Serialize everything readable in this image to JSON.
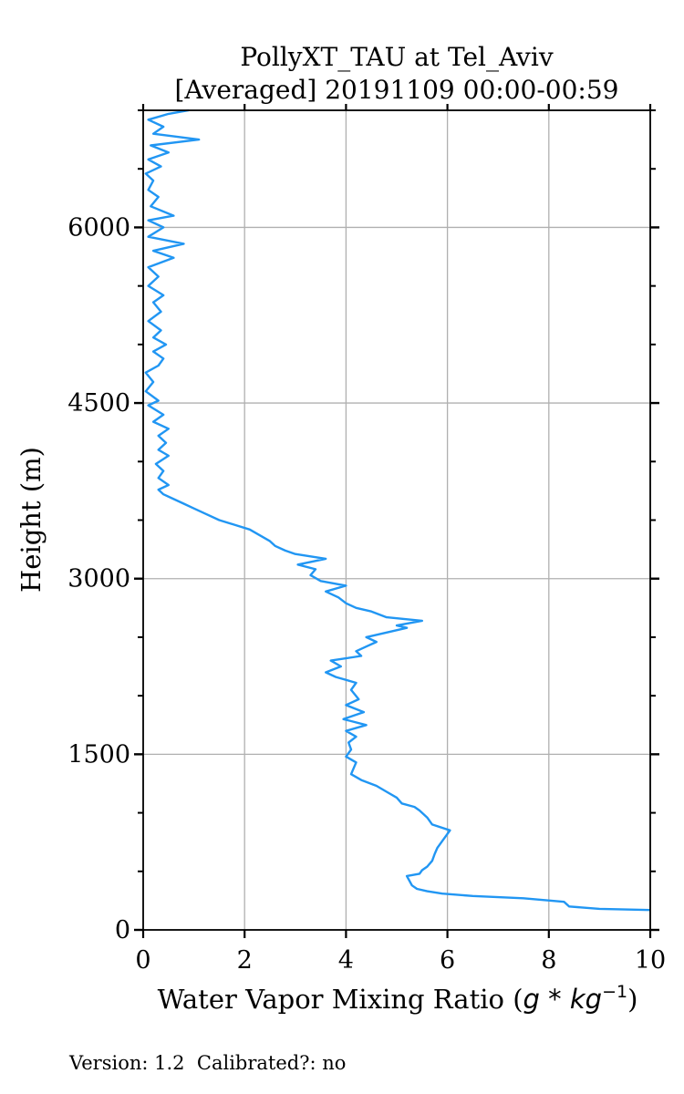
{
  "chart_data": {
    "type": "line",
    "title": "PollyXT_TAU at Tel_Aviv",
    "subtitle": "[Averaged] 20191109 00:00-00:59",
    "xlabel_text": "Water Vapor Mixing Ratio (",
    "xlabel_math": "g * kg",
    "xlabel_exp": "−1",
    "xlabel_close": ")",
    "ylabel": "Height (m)",
    "xlim": [
      0,
      10
    ],
    "ylim": [
      0,
      7000
    ],
    "xticks": [
      0,
      2,
      4,
      6,
      8,
      10
    ],
    "yticks": [
      0,
      1500,
      3000,
      4500,
      6000
    ],
    "yminor_step": 500,
    "grid": true,
    "line_color": "#2196f3",
    "series": [
      {
        "points": [
          [
            10.0,
            170
          ],
          [
            9.0,
            180
          ],
          [
            8.4,
            200
          ],
          [
            8.3,
            240
          ],
          [
            7.5,
            270
          ],
          [
            6.5,
            290
          ],
          [
            5.9,
            310
          ],
          [
            5.6,
            330
          ],
          [
            5.4,
            350
          ],
          [
            5.3,
            380
          ],
          [
            5.25,
            420
          ],
          [
            5.2,
            460
          ],
          [
            5.45,
            480
          ],
          [
            5.5,
            510
          ],
          [
            5.6,
            540
          ],
          [
            5.7,
            590
          ],
          [
            5.75,
            650
          ],
          [
            5.8,
            700
          ],
          [
            5.9,
            760
          ],
          [
            6.05,
            850
          ],
          [
            5.7,
            900
          ],
          [
            5.6,
            960
          ],
          [
            5.45,
            1020
          ],
          [
            5.35,
            1050
          ],
          [
            5.1,
            1080
          ],
          [
            5.0,
            1130
          ],
          [
            4.8,
            1180
          ],
          [
            4.6,
            1230
          ],
          [
            4.3,
            1280
          ],
          [
            4.1,
            1330
          ],
          [
            4.15,
            1380
          ],
          [
            4.2,
            1430
          ],
          [
            4.0,
            1480
          ],
          [
            4.1,
            1540
          ],
          [
            4.05,
            1600
          ],
          [
            4.2,
            1650
          ],
          [
            4.0,
            1700
          ],
          [
            4.4,
            1750
          ],
          [
            3.95,
            1800
          ],
          [
            4.35,
            1860
          ],
          [
            4.0,
            1920
          ],
          [
            4.25,
            1970
          ],
          [
            4.1,
            2050
          ],
          [
            4.2,
            2110
          ],
          [
            3.8,
            2160
          ],
          [
            3.6,
            2200
          ],
          [
            3.9,
            2250
          ],
          [
            3.7,
            2300
          ],
          [
            4.3,
            2340
          ],
          [
            4.2,
            2380
          ],
          [
            4.4,
            2420
          ],
          [
            4.6,
            2460
          ],
          [
            4.4,
            2500
          ],
          [
            4.8,
            2540
          ],
          [
            5.2,
            2580
          ],
          [
            5.0,
            2600
          ],
          [
            5.5,
            2640
          ],
          [
            4.8,
            2670
          ],
          [
            4.5,
            2720
          ],
          [
            4.2,
            2750
          ],
          [
            4.0,
            2790
          ],
          [
            3.85,
            2840
          ],
          [
            3.6,
            2890
          ],
          [
            4.0,
            2940
          ],
          [
            3.5,
            2980
          ],
          [
            3.3,
            3030
          ],
          [
            3.4,
            3080
          ],
          [
            3.05,
            3120
          ],
          [
            3.6,
            3170
          ],
          [
            3.0,
            3210
          ],
          [
            2.8,
            3240
          ],
          [
            2.6,
            3280
          ],
          [
            2.5,
            3320
          ],
          [
            2.3,
            3370
          ],
          [
            2.1,
            3420
          ],
          [
            1.8,
            3460
          ],
          [
            1.5,
            3500
          ],
          [
            1.2,
            3560
          ],
          [
            1.0,
            3600
          ],
          [
            0.8,
            3640
          ],
          [
            0.6,
            3680
          ],
          [
            0.4,
            3720
          ],
          [
            0.3,
            3760
          ],
          [
            0.5,
            3800
          ],
          [
            0.3,
            3860
          ],
          [
            0.4,
            3920
          ],
          [
            0.25,
            3980
          ],
          [
            0.5,
            4050
          ],
          [
            0.3,
            4100
          ],
          [
            0.45,
            4160
          ],
          [
            0.3,
            4220
          ],
          [
            0.5,
            4280
          ],
          [
            0.2,
            4340
          ],
          [
            0.4,
            4400
          ],
          [
            0.1,
            4480
          ],
          [
            0.3,
            4520
          ],
          [
            0.05,
            4600
          ],
          [
            0.2,
            4680
          ],
          [
            0.05,
            4760
          ],
          [
            0.3,
            4820
          ],
          [
            0.4,
            4880
          ],
          [
            0.2,
            4940
          ],
          [
            0.45,
            5000
          ],
          [
            0.2,
            5060
          ],
          [
            0.35,
            5120
          ],
          [
            0.1,
            5200
          ],
          [
            0.35,
            5280
          ],
          [
            0.2,
            5360
          ],
          [
            0.4,
            5420
          ],
          [
            0.1,
            5500
          ],
          [
            0.3,
            5580
          ],
          [
            0.1,
            5660
          ],
          [
            0.6,
            5740
          ],
          [
            0.2,
            5800
          ],
          [
            0.8,
            5860
          ],
          [
            0.1,
            5920
          ],
          [
            0.4,
            6000
          ],
          [
            0.1,
            6060
          ],
          [
            0.6,
            6100
          ],
          [
            0.15,
            6180
          ],
          [
            0.3,
            6260
          ],
          [
            0.1,
            6320
          ],
          [
            0.2,
            6400
          ],
          [
            0.05,
            6460
          ],
          [
            0.35,
            6520
          ],
          [
            0.1,
            6580
          ],
          [
            0.5,
            6640
          ],
          [
            0.15,
            6700
          ],
          [
            1.1,
            6750
          ],
          [
            0.2,
            6800
          ],
          [
            0.4,
            6860
          ],
          [
            0.1,
            6920
          ],
          [
            0.5,
            6970
          ],
          [
            0.9,
            7000
          ]
        ]
      }
    ]
  },
  "footer": {
    "version_label": "Version:",
    "version": "1.2",
    "calibrated_label": "Calibrated?:",
    "calibrated": "no"
  }
}
